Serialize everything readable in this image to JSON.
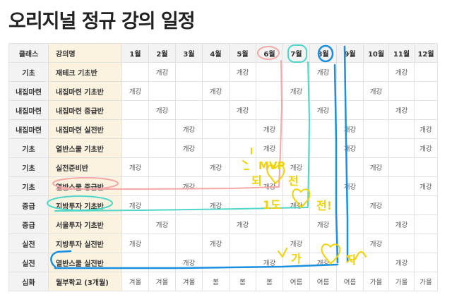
{
  "page": {
    "title": "오리지널 정규 강의 일정"
  },
  "table": {
    "headers": [
      "클래스",
      "강의명",
      "1월",
      "2월",
      "3월",
      "4월",
      "5월",
      "6월",
      "7월",
      "8월",
      "9월",
      "10월",
      "11월",
      "12월"
    ],
    "rows": [
      {
        "class": "기초",
        "course": "재테크 기초반",
        "cells": [
          "",
          "개강",
          "",
          "",
          "개강",
          "",
          "",
          "개강",
          "",
          "",
          "개강",
          ""
        ]
      },
      {
        "class": "내집마련",
        "course": "내집마련 기초반",
        "cells": [
          "개강",
          "",
          "",
          "개강",
          "",
          "",
          "개강",
          "",
          "",
          "개강",
          "",
          ""
        ]
      },
      {
        "class": "내집마련",
        "course": "내집마련 중급반",
        "cells": [
          "",
          "개강",
          "",
          "",
          "개강",
          "",
          "",
          "개강",
          "",
          "",
          "개강",
          ""
        ]
      },
      {
        "class": "내집마련",
        "course": "내집마련 실전반",
        "cells": [
          "",
          "",
          "개강",
          "",
          "",
          "개강",
          "",
          "",
          "개강",
          "",
          "",
          "개강"
        ]
      },
      {
        "class": "기초",
        "course": "열반스쿨 기초반",
        "cells": [
          "",
          "",
          "개강",
          "",
          "",
          "개강",
          "",
          "",
          "개강",
          "",
          "",
          "개강"
        ]
      },
      {
        "class": "기초",
        "course": "실전준비반",
        "cells": [
          "개강",
          "",
          "",
          "개강",
          "",
          "",
          "개강",
          "",
          "",
          "개강",
          "",
          ""
        ]
      },
      {
        "class": "기초",
        "course": "열반스쿨 중급반",
        "cells": [
          "",
          "",
          "개강",
          "",
          "",
          "개강",
          "",
          "",
          "개강",
          "",
          "",
          "개강"
        ]
      },
      {
        "class": "중급",
        "course": "지방투자 기초반",
        "cells": [
          "개강",
          "",
          "",
          "개강",
          "",
          "",
          "개강",
          "",
          "",
          "개강",
          "",
          ""
        ]
      },
      {
        "class": "중급",
        "course": "서울투자 기초반",
        "cells": [
          "",
          "개강",
          "",
          "",
          "개강",
          "",
          "",
          "개강",
          "",
          "",
          "개강",
          ""
        ]
      },
      {
        "class": "실전",
        "course": "지방투자 실전반",
        "cells": [
          "개강",
          "",
          "",
          "개강",
          "",
          "",
          "개강",
          "",
          "",
          "개강",
          "",
          ""
        ]
      },
      {
        "class": "실전",
        "course": "열반스쿨 실전반",
        "cells": [
          "",
          "",
          "개강",
          "",
          "",
          "개강",
          "",
          "개강",
          "",
          "",
          "개강",
          ""
        ]
      },
      {
        "class": "심화",
        "course": "월부학교 (3개월)",
        "cells": [
          "겨울",
          "겨울",
          "겨울",
          "봄",
          "봄",
          "봄",
          "여름",
          "여름",
          "여름",
          "가을",
          "가을",
          "가을"
        ]
      }
    ]
  },
  "annotations": {
    "doodle1_line1": "MVP",
    "doodle1_line2": "되",
    "doodle1_line3": "전",
    "doodle2_prefix": "1도",
    "doodle2_suffix": "전!",
    "doodle3_prefix": "가",
    "doodle3_suffix": "자",
    "colors": {
      "pink": "#f4a8a8",
      "teal": "#4fd6c8",
      "blue": "#1a8fe0",
      "yellow": "#f0d200"
    }
  }
}
